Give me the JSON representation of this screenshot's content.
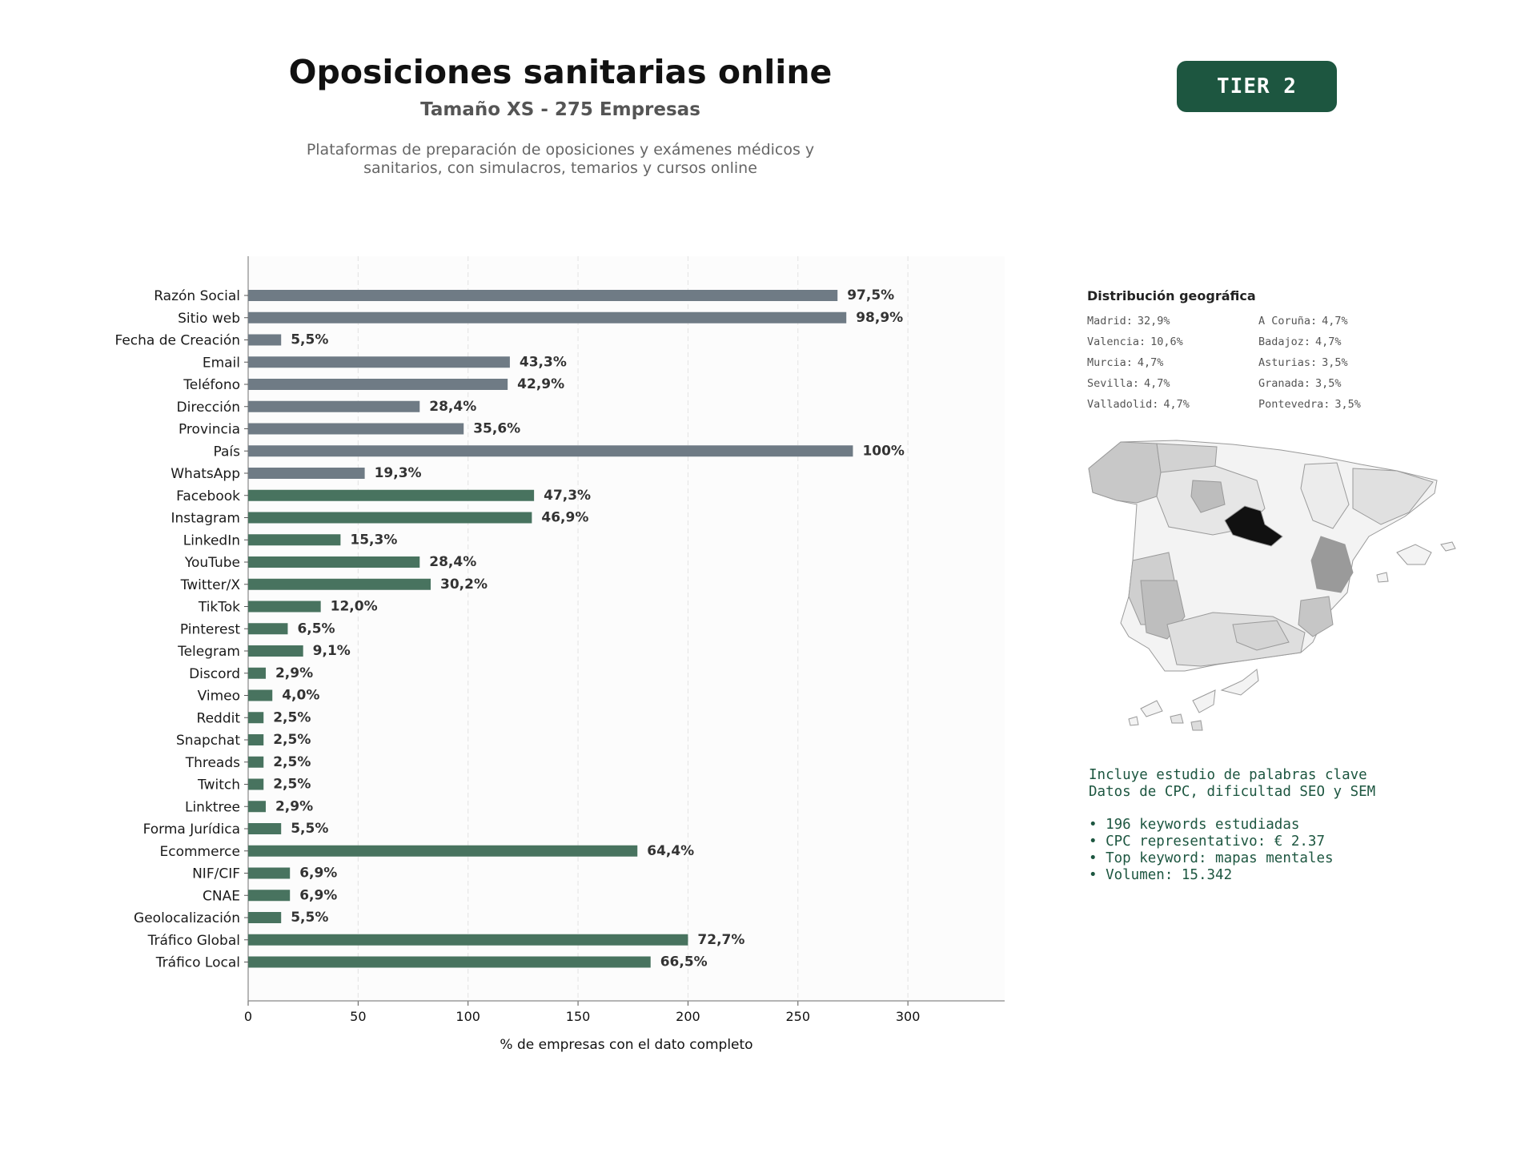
{
  "header": {
    "title": "Oposiciones sanitarias online",
    "subtitle": "Tamaño XS - 275 Empresas",
    "description_1": "Plataformas de preparación de oposiciones y exámenes médicos y",
    "description_2": "sanitarios, con simulacros, temarios y cursos online"
  },
  "badge": {
    "label": "TIER 2",
    "color": "#1d5640"
  },
  "colors": {
    "gray_bar": "#6f7b85",
    "green_bar": "#48735f",
    "plot_bg": "#fcfcfc",
    "map_base": "#f3f3f3",
    "map_dark": "#111111"
  },
  "chart_data": {
    "type": "bar",
    "orientation": "horizontal",
    "categories": [
      "Razón Social",
      "Sitio web",
      "Fecha de Creación",
      "Email",
      "Teléfono",
      "Dirección",
      "Provincia",
      "País",
      "WhatsApp",
      "Facebook",
      "Instagram",
      "LinkedIn",
      "YouTube",
      "Twitter/X",
      "TikTok",
      "Pinterest",
      "Telegram",
      "Discord",
      "Vimeo",
      "Reddit",
      "Snapchat",
      "Threads",
      "Twitch",
      "Linktree",
      "Forma Jurídica",
      "Ecommerce",
      "NIF/CIF",
      "CNAE",
      "Geolocalización",
      "Tráfico Global",
      "Tráfico Local"
    ],
    "values": [
      268,
      272,
      15,
      119,
      118,
      78,
      98,
      275,
      53,
      130,
      129,
      42,
      78,
      83,
      33,
      18,
      25,
      8,
      11,
      7,
      7,
      7,
      7,
      8,
      15,
      177,
      19,
      19,
      15,
      200,
      183
    ],
    "value_labels": [
      "97,5%",
      "98,9%",
      "5,5%",
      "43,3%",
      "42,9%",
      "28,4%",
      "35,6%",
      "100%",
      "19,3%",
      "47,3%",
      "46,9%",
      "15,3%",
      "28,4%",
      "30,2%",
      "12,0%",
      "6,5%",
      "9,1%",
      "2,9%",
      "4,0%",
      "2,5%",
      "2,5%",
      "2,5%",
      "2,5%",
      "2,9%",
      "5,5%",
      "64,4%",
      "6,9%",
      "6,9%",
      "5,5%",
      "72,7%",
      "66,5%"
    ],
    "group": [
      "gray",
      "gray",
      "gray",
      "gray",
      "gray",
      "gray",
      "gray",
      "gray",
      "gray",
      "green",
      "green",
      "green",
      "green",
      "green",
      "green",
      "green",
      "green",
      "green",
      "green",
      "green",
      "green",
      "green",
      "green",
      "green",
      "green",
      "green",
      "green",
      "green",
      "green",
      "green",
      "green"
    ],
    "xlabel": "% de empresas con el dato completo",
    "xlim": [
      0,
      344
    ],
    "xticks": [
      0,
      50,
      100,
      150,
      200,
      250,
      300
    ],
    "grid": "vertical dashed"
  },
  "geo": {
    "title": "Distribución geográfica",
    "items": [
      {
        "name": "Madrid:",
        "pct": "32,9%"
      },
      {
        "name": "A Coruña:",
        "pct": "4,7%"
      },
      {
        "name": "Valencia:",
        "pct": "10,6%"
      },
      {
        "name": "Badajoz:",
        "pct": "4,7%"
      },
      {
        "name": "Murcia:",
        "pct": "4,7%"
      },
      {
        "name": "Asturias:",
        "pct": "3,5%"
      },
      {
        "name": "Sevilla:",
        "pct": "4,7%"
      },
      {
        "name": "Granada:",
        "pct": "3,5%"
      },
      {
        "name": "Valladolid:",
        "pct": "4,7%"
      },
      {
        "name": "Pontevedra:",
        "pct": "3,5%"
      }
    ]
  },
  "keywords": {
    "line1": "Incluye estudio de palabras clave",
    "line2": "Datos de CPC, dificultad SEO y SEM",
    "bullets": [
      "• 196 keywords estudiadas",
      "• CPC representativo: € 2.37",
      "• Top keyword: mapas mentales",
      "• Volumen: 15.342"
    ]
  }
}
